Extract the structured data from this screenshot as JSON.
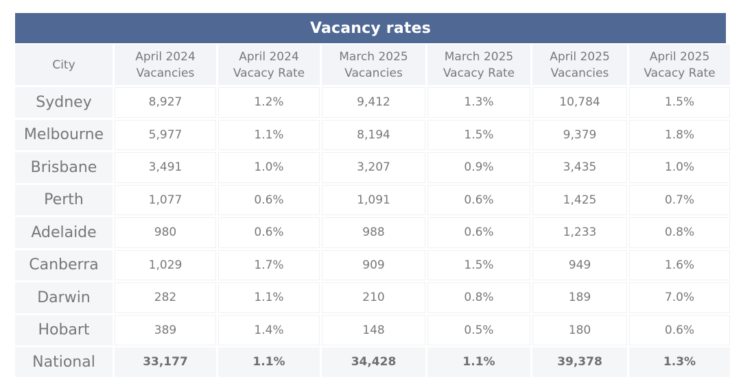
{
  "chart_data": {
    "type": "table",
    "title": "Vacancy rates",
    "columns": [
      {
        "line1": "City",
        "line2": ""
      },
      {
        "line1": "April 2024",
        "line2": "Vacancies"
      },
      {
        "line1": "April 2024",
        "line2": "Vacacy Rate"
      },
      {
        "line1": "March 2025",
        "line2": "Vacancies"
      },
      {
        "line1": "March 2025",
        "line2": "Vacacy Rate"
      },
      {
        "line1": "April 2025",
        "line2": "Vacancies"
      },
      {
        "line1": "April 2025",
        "line2": "Vacacy Rate"
      }
    ],
    "rows": [
      [
        "Sydney",
        "8,927",
        "1.2%",
        "9,412",
        "1.3%",
        "10,784",
        "1.5%"
      ],
      [
        "Melbourne",
        "5,977",
        "1.1%",
        "8,194",
        "1.5%",
        "9,379",
        "1.8%"
      ],
      [
        "Brisbane",
        "3,491",
        "1.0%",
        "3,207",
        "0.9%",
        "3,435",
        "1.0%"
      ],
      [
        "Perth",
        "1,077",
        "0.6%",
        "1,091",
        "0.6%",
        "1,425",
        "0.7%"
      ],
      [
        "Adelaide",
        "980",
        "0.6%",
        "988",
        "0.6%",
        "1,233",
        "0.8%"
      ],
      [
        "Canberra",
        "1,029",
        "1.7%",
        "909",
        "1.5%",
        "949",
        "1.6%"
      ],
      [
        "Darwin",
        "282",
        "1.1%",
        "210",
        "0.8%",
        "189",
        "7.0%"
      ],
      [
        "Hobart",
        "389",
        "1.4%",
        "148",
        "0.5%",
        "180",
        "0.6%"
      ],
      [
        "National",
        "33,177",
        "1.1%",
        "34,428",
        "1.1%",
        "39,378",
        "1.3%"
      ]
    ],
    "total_row": "National",
    "colors": {
      "header_bar": "#4f6894",
      "header_text": "#ffffff",
      "cell_text": "#787878",
      "label_bg": "#f5f6f8"
    }
  }
}
